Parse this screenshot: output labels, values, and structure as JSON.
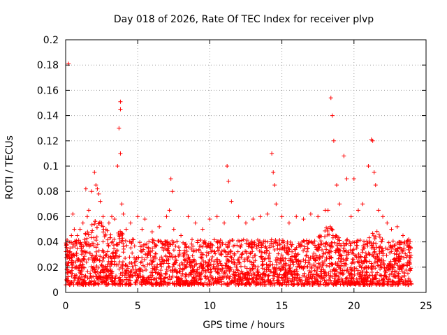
{
  "chart_data": {
    "type": "scatter",
    "title": "Day 018 of 2026, Rate Of TEC Index for receiver plvp",
    "xlabel": "GPS time / hours",
    "ylabel": "ROTI / TECUs",
    "xlim": [
      0,
      25
    ],
    "ylim": [
      0,
      0.2
    ],
    "xticks": [
      0,
      5,
      10,
      15,
      20,
      25
    ],
    "yticks": [
      0,
      0.02,
      0.04,
      0.06,
      0.08,
      0.1,
      0.12,
      0.14,
      0.16,
      0.18,
      0.2
    ],
    "xtick_labels": [
      "0",
      "5",
      "10",
      "15",
      "20",
      "25"
    ],
    "ytick_labels": [
      "0",
      "0.02",
      "0.04",
      "0.06",
      "0.08",
      "0.1",
      "0.12",
      "0.14",
      "0.16",
      "0.18",
      "0.2"
    ],
    "grid": true,
    "marker": "+",
    "color": "#ff0000",
    "series": [
      {
        "name": "ROTI",
        "x": [
          0.1,
          0.2,
          0.3,
          0.4,
          0.5,
          0.6,
          0.7,
          0.8,
          1.0,
          1.2,
          1.4,
          1.5,
          1.6,
          1.8,
          2.0,
          2.1,
          2.2,
          2.3,
          2.4,
          2.5,
          2.6,
          2.8,
          3.0,
          3.2,
          3.4,
          3.6,
          3.7,
          3.8,
          3.8,
          3.8,
          3.9,
          4.0,
          4.2,
          4.5,
          5.0,
          5.3,
          5.5,
          6.0,
          6.5,
          7.0,
          7.2,
          7.3,
          7.4,
          7.5,
          8.0,
          8.5,
          9.0,
          9.5,
          10.0,
          10.5,
          11.0,
          11.2,
          11.3,
          11.5,
          12.0,
          12.5,
          13.0,
          13.5,
          14.0,
          14.3,
          14.4,
          14.5,
          14.6,
          15.0,
          15.5,
          16.0,
          16.5,
          17.0,
          17.5,
          18.0,
          18.2,
          18.4,
          18.5,
          18.6,
          18.8,
          19.0,
          19.3,
          19.5,
          19.8,
          20.0,
          20.3,
          20.6,
          21.0,
          21.2,
          21.3,
          21.4,
          21.5,
          21.7,
          22.0,
          22.3,
          22.6,
          23.0,
          23.4,
          23.8
        ],
        "y": [
          0.03,
          0.181,
          0.035,
          0.045,
          0.062,
          0.05,
          0.04,
          0.045,
          0.05,
          0.055,
          0.082,
          0.06,
          0.065,
          0.08,
          0.095,
          0.085,
          0.082,
          0.078,
          0.072,
          0.055,
          0.06,
          0.05,
          0.055,
          0.06,
          0.058,
          0.1,
          0.13,
          0.151,
          0.145,
          0.11,
          0.07,
          0.062,
          0.05,
          0.055,
          0.06,
          0.05,
          0.058,
          0.048,
          0.052,
          0.06,
          0.065,
          0.09,
          0.08,
          0.05,
          0.045,
          0.06,
          0.055,
          0.05,
          0.058,
          0.06,
          0.055,
          0.1,
          0.088,
          0.072,
          0.06,
          0.055,
          0.058,
          0.06,
          0.062,
          0.11,
          0.095,
          0.085,
          0.07,
          0.06,
          0.055,
          0.06,
          0.058,
          0.062,
          0.06,
          0.065,
          0.065,
          0.154,
          0.14,
          0.12,
          0.085,
          0.07,
          0.108,
          0.09,
          0.06,
          0.09,
          0.065,
          0.07,
          0.1,
          0.121,
          0.12,
          0.095,
          0.085,
          0.065,
          0.06,
          0.055,
          0.05,
          0.052,
          0.045,
          0.042
        ]
      }
    ]
  }
}
